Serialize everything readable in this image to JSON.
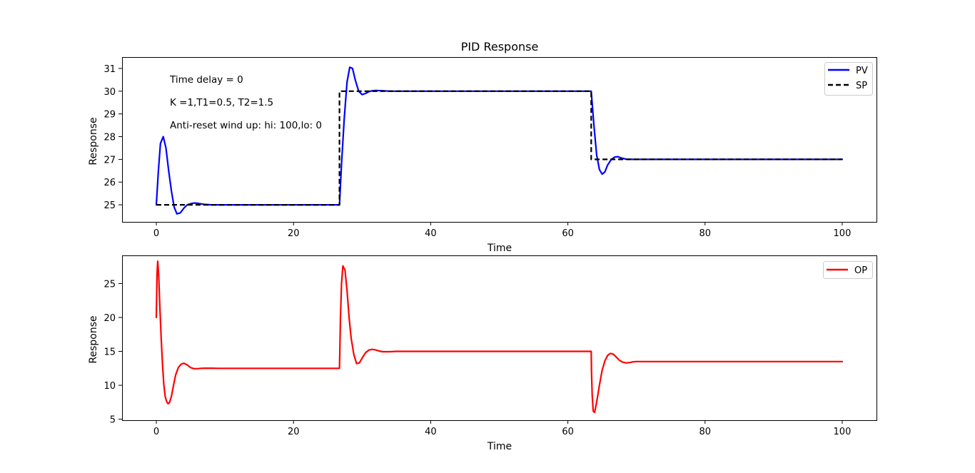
{
  "chart_data": [
    {
      "type": "line",
      "title": "PID Response",
      "xlabel": "Time",
      "ylabel": "Response",
      "xlim": [
        -5,
        105
      ],
      "ylim": [
        24.25,
        31.5
      ],
      "xticks": [
        0,
        20,
        40,
        60,
        80,
        100
      ],
      "yticks": [
        25,
        26,
        27,
        28,
        29,
        30,
        31
      ],
      "grid": false,
      "legend_position": "top-right",
      "annotations": [
        "Time delay = 0",
        "K =1,T1=0.5, T2=1.5",
        "Anti-reset wind up: hi: 100,lo: 0"
      ],
      "series": [
        {
          "name": "PV",
          "color": "#0000ff",
          "style": "solid",
          "x": [
            0,
            0.3,
            0.6,
            1.0,
            1.4,
            1.8,
            2.2,
            2.6,
            3.0,
            3.5,
            4.0,
            4.5,
            5.0,
            5.5,
            6.0,
            7.0,
            8.0,
            10.0,
            26.7,
            27.0,
            27.4,
            27.8,
            28.2,
            28.6,
            29.0,
            29.5,
            30.0,
            30.5,
            31.0,
            31.5,
            32.0,
            33.0,
            34.0,
            36.0,
            63.4,
            63.8,
            64.2,
            64.6,
            65.0,
            65.4,
            65.8,
            66.3,
            66.8,
            67.3,
            67.8,
            68.5,
            69.5,
            71.0,
            100.0
          ],
          "values": [
            25.0,
            26.5,
            27.7,
            28.0,
            27.5,
            26.5,
            25.6,
            24.9,
            24.6,
            24.65,
            24.85,
            25.0,
            25.05,
            25.08,
            25.07,
            25.02,
            25.0,
            25.0,
            25.0,
            26.8,
            28.8,
            30.4,
            31.05,
            31.0,
            30.5,
            30.0,
            29.85,
            29.9,
            29.98,
            30.02,
            30.03,
            30.02,
            30.0,
            30.0,
            30.0,
            28.5,
            27.2,
            26.55,
            26.35,
            26.45,
            26.75,
            26.98,
            27.1,
            27.12,
            27.06,
            27.01,
            27.0,
            27.0,
            27.0
          ]
        },
        {
          "name": "SP",
          "color": "#000000",
          "style": "dashed",
          "x": [
            0,
            26.7,
            26.7,
            63.4,
            63.4,
            100
          ],
          "values": [
            25,
            25,
            30,
            30,
            27,
            27
          ]
        }
      ]
    },
    {
      "type": "line",
      "title": "",
      "xlabel": "Time",
      "ylabel": "Response",
      "xlim": [
        -5,
        105
      ],
      "ylim": [
        4.85,
        29.15
      ],
      "xticks": [
        0,
        20,
        40,
        60,
        80,
        100
      ],
      "yticks": [
        5,
        10,
        15,
        20,
        25
      ],
      "grid": false,
      "legend_position": "top-right",
      "series": [
        {
          "name": "OP",
          "color": "#ff0000",
          "style": "solid",
          "x": [
            0,
            0.1,
            0.2,
            0.35,
            0.5,
            0.7,
            0.9,
            1.1,
            1.3,
            1.5,
            1.7,
            1.9,
            2.2,
            2.5,
            2.8,
            3.2,
            3.6,
            4.0,
            4.5,
            5.0,
            5.5,
            6.0,
            6.5,
            7.0,
            8.0,
            9.0,
            10.0,
            26.7,
            26.75,
            26.85,
            27.0,
            27.2,
            27.5,
            27.8,
            28.1,
            28.4,
            28.8,
            29.2,
            29.6,
            30.0,
            30.5,
            31.0,
            31.5,
            32.0,
            32.5,
            33.0,
            34.0,
            35.0,
            36.0,
            63.4,
            63.45,
            63.55,
            63.7,
            63.9,
            64.2,
            64.6,
            65.0,
            65.4,
            65.8,
            66.2,
            66.6,
            67.0,
            67.5,
            68.0,
            68.5,
            69.0,
            69.5,
            70.0,
            71.0,
            72.0,
            100.0
          ],
          "values": [
            20.0,
            26.5,
            28.3,
            26.0,
            22.0,
            17.0,
            13.0,
            10.0,
            8.3,
            7.6,
            7.3,
            7.4,
            8.4,
            10.0,
            11.5,
            12.6,
            13.1,
            13.25,
            13.0,
            12.6,
            12.45,
            12.45,
            12.5,
            12.52,
            12.52,
            12.5,
            12.5,
            12.5,
            15.0,
            20.0,
            25.0,
            27.6,
            27.0,
            24.0,
            20.0,
            17.0,
            14.5,
            13.2,
            13.3,
            14.0,
            14.8,
            15.2,
            15.3,
            15.2,
            15.05,
            14.95,
            14.95,
            15.0,
            15.0,
            15.0,
            12.0,
            8.5,
            6.2,
            6.0,
            7.5,
            10.0,
            12.2,
            13.6,
            14.4,
            14.7,
            14.6,
            14.2,
            13.7,
            13.4,
            13.3,
            13.35,
            13.45,
            13.5,
            13.5,
            13.5,
            13.5
          ]
        }
      ]
    }
  ]
}
